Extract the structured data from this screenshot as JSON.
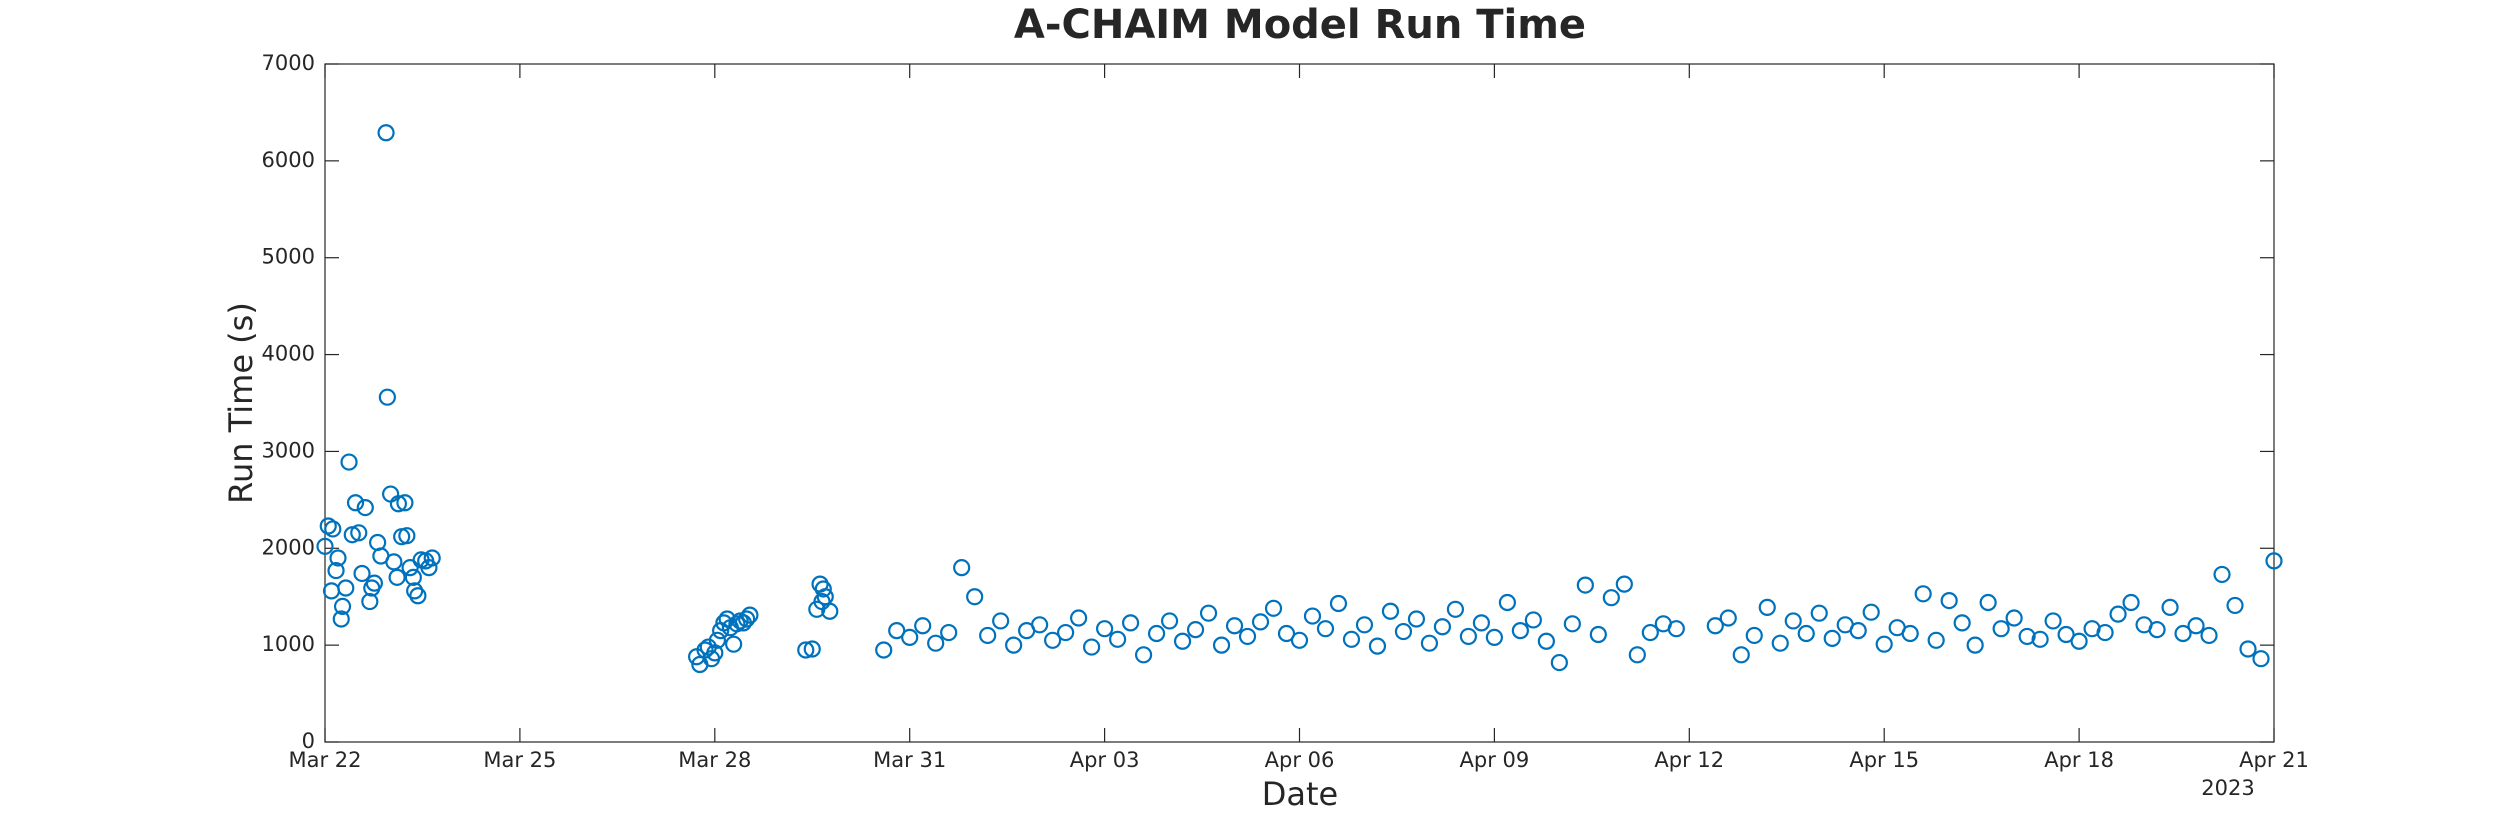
{
  "chart_data": {
    "type": "scatter",
    "title": "A-CHAIM Model Run Time",
    "x_label": "Date",
    "y_label": "Run Time (s)",
    "x_secondary_label": "2023",
    "color": "#0072bd",
    "x": [
      0,
      0.05,
      0.1,
      0.12,
      0.17,
      0.2,
      0.25,
      0.27,
      0.32,
      0.37,
      0.42,
      0.47,
      0.52,
      0.57,
      0.62,
      0.69,
      0.72,
      0.76,
      0.81,
      0.86,
      0.94,
      0.96,
      1.01,
      1.06,
      1.11,
      1.13,
      1.18,
      1.23,
      1.26,
      1.31,
      1.36,
      1.38,
      1.43,
      1.48,
      1.55,
      1.6,
      1.65,
      5.72,
      5.77,
      5.85,
      5.9,
      5.95,
      6.0,
      6.04,
      6.09,
      6.14,
      6.19,
      6.24,
      6.29,
      6.34,
      6.39,
      6.44,
      6.49,
      6.54,
      7.4,
      7.5,
      7.57,
      7.62,
      7.65,
      7.67,
      7.7,
      7.77,
      8.6,
      8.8,
      9,
      9.2,
      9.4,
      9.6,
      9.8,
      10,
      10.2,
      10.4,
      10.6,
      10.8,
      11,
      11.2,
      11.4,
      11.6,
      11.8,
      12,
      12.2,
      12.4,
      12.6,
      12.8,
      13,
      13.2,
      13.4,
      13.6,
      13.8,
      14,
      14.2,
      14.4,
      14.6,
      14.8,
      15,
      15.2,
      15.4,
      15.6,
      15.8,
      16,
      16.2,
      16.4,
      16.6,
      16.8,
      17,
      17.2,
      17.4,
      17.6,
      17.8,
      18,
      18.2,
      18.4,
      18.6,
      18.8,
      19,
      19.2,
      19.4,
      19.6,
      19.8,
      20,
      20.2,
      20.4,
      20.6,
      20.8,
      21.4,
      21.6,
      21.8,
      22,
      22.2,
      22.4,
      22.6,
      22.8,
      23,
      23.2,
      23.4,
      23.6,
      23.8,
      24,
      24.2,
      24.4,
      24.6,
      24.8,
      25,
      25.2,
      25.4,
      25.6,
      25.8,
      26,
      26.2,
      26.4,
      26.6,
      26.8,
      27,
      27.2,
      27.4,
      27.6,
      27.8,
      28,
      28.2,
      28.4,
      28.6,
      28.8,
      29,
      29.2,
      29.4,
      29.6,
      29.8,
      30
    ],
    "values": [
      2020,
      2230,
      1560,
      2200,
      1770,
      1900,
      1270,
      1400,
      1590,
      2890,
      2140,
      2470,
      2160,
      1740,
      2420,
      1450,
      1590,
      1640,
      2060,
      1920,
      6290,
      3560,
      2560,
      1860,
      1700,
      2460,
      2120,
      2470,
      2130,
      1800,
      1700,
      1560,
      1510,
      1880,
      1870,
      1800,
      1900,
      880,
      800,
      950,
      980,
      860,
      920,
      1050,
      1150,
      1230,
      1270,
      1180,
      1010,
      1220,
      1250,
      1230,
      1270,
      1310,
      950,
      960,
      1370,
      1630,
      1450,
      1580,
      1500,
      1350,
      950,
      1150,
      1080,
      1200,
      1020,
      1130,
      1800,
      1500,
      1100,
      1250,
      1000,
      1150,
      1210,
      1050,
      1130,
      1280,
      980,
      1170,
      1060,
      1230,
      900,
      1120,
      1250,
      1040,
      1160,
      1330,
      1000,
      1200,
      1090,
      1240,
      1380,
      1120,
      1050,
      1300,
      1170,
      1430,
      1060,
      1210,
      990,
      1350,
      1140,
      1270,
      1020,
      1190,
      1370,
      1090,
      1230,
      1080,
      1440,
      1150,
      1260,
      1040,
      820,
      1220,
      1620,
      1110,
      1490,
      1630,
      900,
      1130,
      1220,
      1170,
      1200,
      1280,
      900,
      1100,
      1390,
      1020,
      1250,
      1120,
      1330,
      1070,
      1210,
      1150,
      1340,
      1010,
      1180,
      1120,
      1530,
      1050,
      1460,
      1230,
      1000,
      1440,
      1170,
      1280,
      1090,
      1060,
      1250,
      1110,
      1040,
      1170,
      1130,
      1320,
      1440,
      1210,
      1160,
      1390,
      1120,
      1200,
      1100,
      1730,
      1410,
      960,
      860,
      1870
    ],
    "xlim": [
      0,
      30
    ],
    "xticks": [
      {
        "value": 0,
        "label": "Mar 22"
      },
      {
        "value": 3,
        "label": "Mar 25"
      },
      {
        "value": 6,
        "label": "Mar 28"
      },
      {
        "value": 9,
        "label": "Mar 31"
      },
      {
        "value": 12,
        "label": "Apr 03"
      },
      {
        "value": 15,
        "label": "Apr 06"
      },
      {
        "value": 18,
        "label": "Apr 09"
      },
      {
        "value": 21,
        "label": "Apr 12"
      },
      {
        "value": 24,
        "label": "Apr 15"
      },
      {
        "value": 27,
        "label": "Apr 18"
      },
      {
        "value": 30,
        "label": "Apr 21"
      }
    ],
    "ylim": [
      0,
      7000
    ],
    "yticks": [
      0,
      1000,
      2000,
      3000,
      4000,
      5000,
      6000,
      7000
    ],
    "grid": false
  }
}
